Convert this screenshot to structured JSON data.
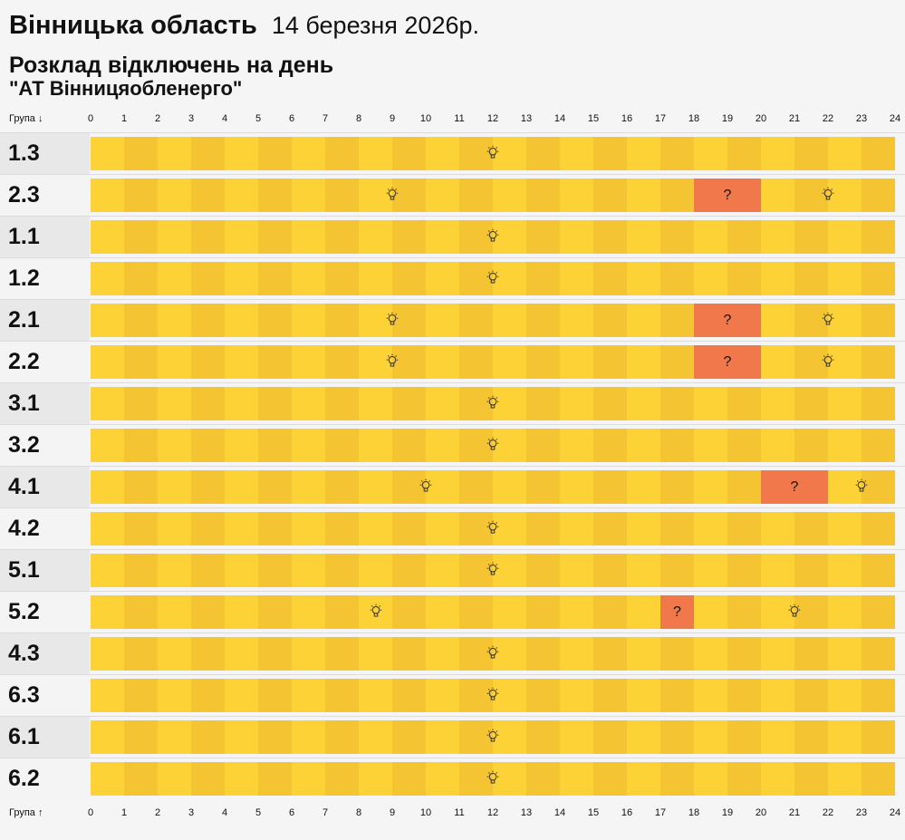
{
  "header": {
    "region": "Вінницька область",
    "date": "14 березня 2026р.",
    "subtitle_line1": "Розклад відключень на день",
    "subtitle_line2": "\"АТ Вінницяобленерго\""
  },
  "axis": {
    "top_label": "Група ↓",
    "bottom_label": "Група ↑",
    "ticks": [
      "0",
      "1",
      "2",
      "3",
      "4",
      "5",
      "6",
      "7",
      "8",
      "9",
      "10",
      "11",
      "12",
      "13",
      "14",
      "15",
      "16",
      "17",
      "18",
      "19",
      "20",
      "21",
      "22",
      "23",
      "24"
    ]
  },
  "colors": {
    "power_on_light": "#fcd237",
    "power_on_dark": "#f4c433",
    "possible_outage": "#f1784a"
  },
  "icons": {
    "power_on": "lightbulb-icon"
  },
  "outage_mark": "?",
  "rows": [
    {
      "group": "1.3",
      "outages": [],
      "bulbs": [
        12
      ]
    },
    {
      "group": "2.3",
      "outages": [
        [
          18,
          20
        ]
      ],
      "bulbs": [
        9,
        22
      ]
    },
    {
      "group": "1.1",
      "outages": [],
      "bulbs": [
        12
      ]
    },
    {
      "group": "1.2",
      "outages": [],
      "bulbs": [
        12
      ]
    },
    {
      "group": "2.1",
      "outages": [
        [
          18,
          20
        ]
      ],
      "bulbs": [
        9,
        22
      ]
    },
    {
      "group": "2.2",
      "outages": [
        [
          18,
          20
        ]
      ],
      "bulbs": [
        9,
        22
      ]
    },
    {
      "group": "3.1",
      "outages": [],
      "bulbs": [
        12
      ]
    },
    {
      "group": "3.2",
      "outages": [],
      "bulbs": [
        12
      ]
    },
    {
      "group": "4.1",
      "outages": [
        [
          20,
          22
        ]
      ],
      "bulbs": [
        10,
        23
      ]
    },
    {
      "group": "4.2",
      "outages": [],
      "bulbs": [
        12
      ]
    },
    {
      "group": "5.1",
      "outages": [],
      "bulbs": [
        12
      ]
    },
    {
      "group": "5.2",
      "outages": [
        [
          17,
          18
        ]
      ],
      "bulbs": [
        8.5,
        21
      ]
    },
    {
      "group": "4.3",
      "outages": [],
      "bulbs": [
        12
      ]
    },
    {
      "group": "6.3",
      "outages": [],
      "bulbs": [
        12
      ]
    },
    {
      "group": "6.1",
      "outages": [],
      "bulbs": [
        12
      ]
    },
    {
      "group": "6.2",
      "outages": [],
      "bulbs": [
        12
      ]
    }
  ]
}
